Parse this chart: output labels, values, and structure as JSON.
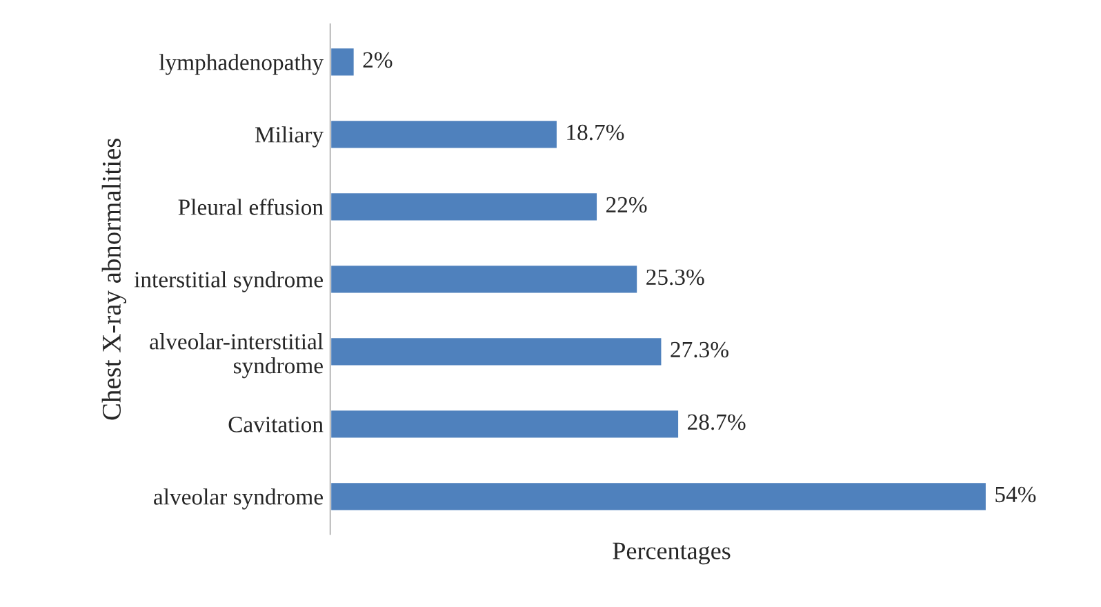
{
  "chart_data": {
    "type": "bar",
    "orientation": "horizontal",
    "xlabel": "Percentages",
    "ylabel": "Chest X-ray abnormalities",
    "categories": [
      "lymphadenopathy",
      "Miliary",
      "Pleural effusion",
      "interstitial syndrome",
      "alveolar-interstitial\nsyndrome",
      "Cavitation",
      "alveolar syndrome"
    ],
    "values": [
      2,
      18.7,
      22,
      25.3,
      27.3,
      28.7,
      54
    ],
    "value_labels": [
      "2%",
      "18.7%",
      "22%",
      "25.3%",
      "27.3%",
      "28.7%",
      "54%"
    ],
    "color": "#4f81bd",
    "grid": false,
    "legend": false
  }
}
